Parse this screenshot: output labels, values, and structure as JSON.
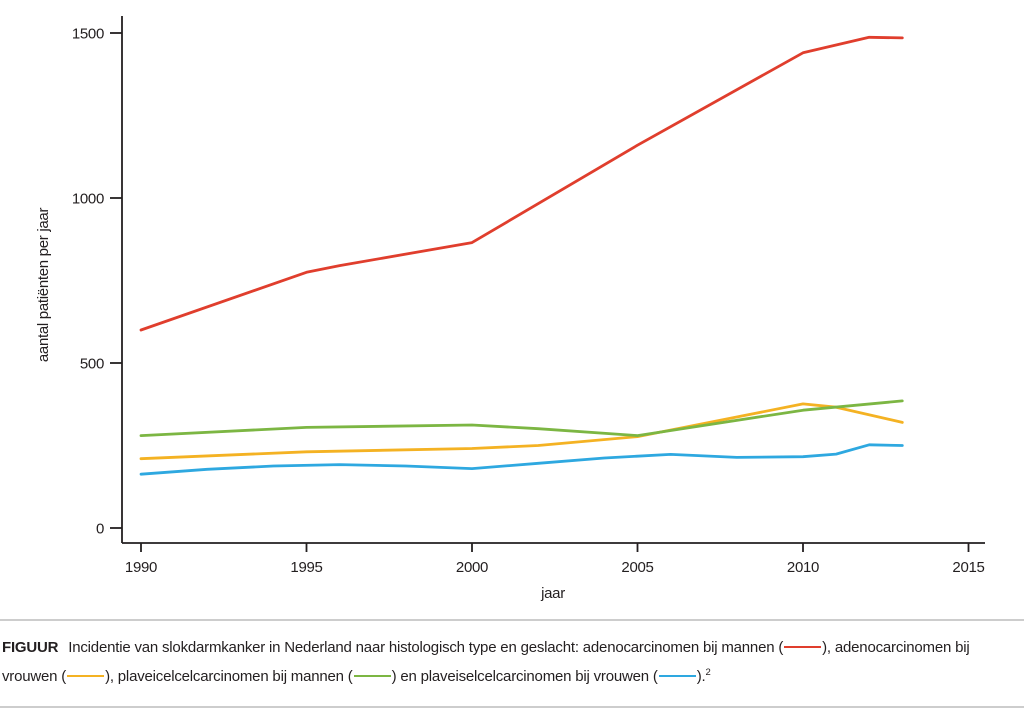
{
  "chart_data": {
    "type": "line",
    "title": "",
    "xlabel": "jaar",
    "ylabel": "aantal patiënten per jaar",
    "xlim": [
      1990,
      2015
    ],
    "ylim": [
      0,
      1500
    ],
    "xticks": [
      "1990",
      "1995",
      "2000",
      "2005",
      "2010",
      "2015"
    ],
    "yticks": [
      "0",
      "500",
      "1000",
      "1500"
    ],
    "grid": false,
    "legend_position": "in-caption",
    "series": [
      {
        "name": "adenocarcinomen bij mannen",
        "color": "#e03e2d",
        "points": [
          [
            1990,
            600
          ],
          [
            1995,
            775
          ],
          [
            1996,
            795
          ],
          [
            2000,
            865
          ],
          [
            2005,
            1160
          ],
          [
            2010,
            1440
          ],
          [
            2012,
            1487
          ],
          [
            2013,
            1485
          ]
        ]
      },
      {
        "name": "adenocarcinomen bij vrouwen",
        "color": "#f4b223",
        "points": [
          [
            1990,
            210
          ],
          [
            1995,
            231
          ],
          [
            2000,
            241
          ],
          [
            2002,
            250
          ],
          [
            2005,
            277
          ],
          [
            2010,
            376
          ],
          [
            2011,
            366
          ],
          [
            2013,
            320
          ]
        ]
      },
      {
        "name": "plaveicelcelcarcinomen bij mannen",
        "color": "#7cb643",
        "points": [
          [
            1990,
            280
          ],
          [
            1995,
            305
          ],
          [
            2000,
            312
          ],
          [
            2002,
            301
          ],
          [
            2005,
            280
          ],
          [
            2010,
            357
          ],
          [
            2013,
            385
          ]
        ]
      },
      {
        "name": "plaveiselcelcarcinomen bij vrouwen",
        "color": "#2ea8e0",
        "points": [
          [
            1990,
            163
          ],
          [
            1992,
            178
          ],
          [
            1994,
            188
          ],
          [
            1996,
            192
          ],
          [
            1998,
            188
          ],
          [
            2000,
            180
          ],
          [
            2002,
            196
          ],
          [
            2004,
            212
          ],
          [
            2006,
            223
          ],
          [
            2008,
            214
          ],
          [
            2010,
            216
          ],
          [
            2011,
            224
          ],
          [
            2012,
            252
          ],
          [
            2013,
            250
          ]
        ]
      }
    ]
  },
  "caption": {
    "segments": [
      {
        "t": "b",
        "text": "FIGUUR",
        "name": "caption-label"
      },
      {
        "t": "tx",
        "text": "Incidentie van slokdarmkanker in Nederland naar histologisch type en geslacht: adenocarcinomen bij mannen ("
      },
      {
        "t": "sw",
        "color": "#e03e2d",
        "name": "legend-swatch-adenocarcinomen-mannen"
      },
      {
        "t": "tx",
        "text": "), adenocarcinomen bij vrouwen ("
      },
      {
        "t": "sw",
        "color": "#f4b223",
        "name": "legend-swatch-adenocarcinomen-vrouwen"
      },
      {
        "t": "tx",
        "text": "), plaveicelcelcarcinomen bij mannen ("
      },
      {
        "t": "sw",
        "color": "#7cb643",
        "name": "legend-swatch-plaveicelcelcarcinomen-mannen"
      },
      {
        "t": "tx",
        "text": ") en plaveiselcelcarcinomen bij vrouwen ("
      },
      {
        "t": "sw",
        "color": "#2ea8e0",
        "name": "legend-swatch-plaveiselcelcarcinomen-vrouwen"
      },
      {
        "t": "tx",
        "text": ")."
      },
      {
        "t": "sup",
        "text": "2"
      }
    ]
  }
}
